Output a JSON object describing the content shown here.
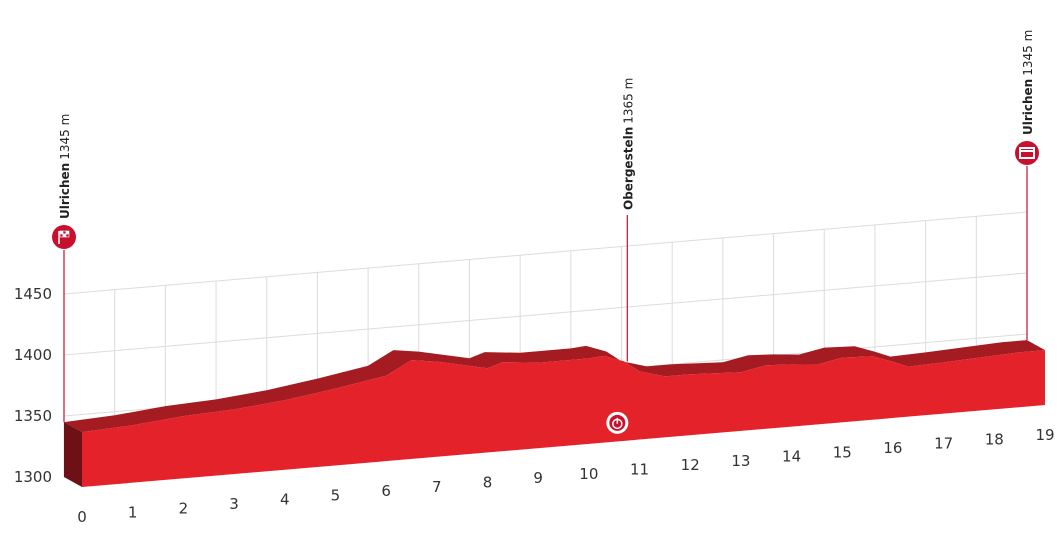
{
  "chart_data": {
    "type": "profile",
    "x": [
      0,
      1,
      2,
      3,
      4,
      5,
      6,
      6.5,
      7,
      8,
      8.3,
      9,
      10,
      10.3,
      10.7,
      11,
      11.5,
      12,
      13,
      13.5,
      14,
      14.5,
      15,
      15.6,
      16,
      16.3,
      17,
      18,
      18.5,
      19
    ],
    "values": [
      1345,
      1347,
      1351,
      1353,
      1357,
      1363,
      1370,
      1381,
      1378,
      1369,
      1373,
      1370,
      1370,
      1371,
      1365,
      1356,
      1350,
      1350,
      1348,
      1352,
      1351,
      1349,
      1353,
      1352,
      1346,
      1341,
      1342,
      1344,
      1345,
      1345
    ],
    "xlim": [
      0,
      19
    ],
    "xticks": [
      0,
      1,
      2,
      3,
      4,
      5,
      6,
      7,
      8,
      9,
      10,
      11,
      12,
      13,
      14,
      15,
      16,
      17,
      18,
      19
    ],
    "ylim": [
      1300,
      1450
    ],
    "yticks": [
      1300,
      1350,
      1400,
      1450
    ],
    "grid": true,
    "color": "#e3222a",
    "markers": [
      {
        "name": "Ulrichen",
        "label": "1345 m",
        "x": 0,
        "icon": "start"
      },
      {
        "name": "Obergesteln",
        "label": "1365 m",
        "x": 10.7,
        "icon": "timing"
      },
      {
        "name": "Ulrichen",
        "label": "1345 m",
        "x": 19,
        "icon": "finish"
      }
    ]
  }
}
